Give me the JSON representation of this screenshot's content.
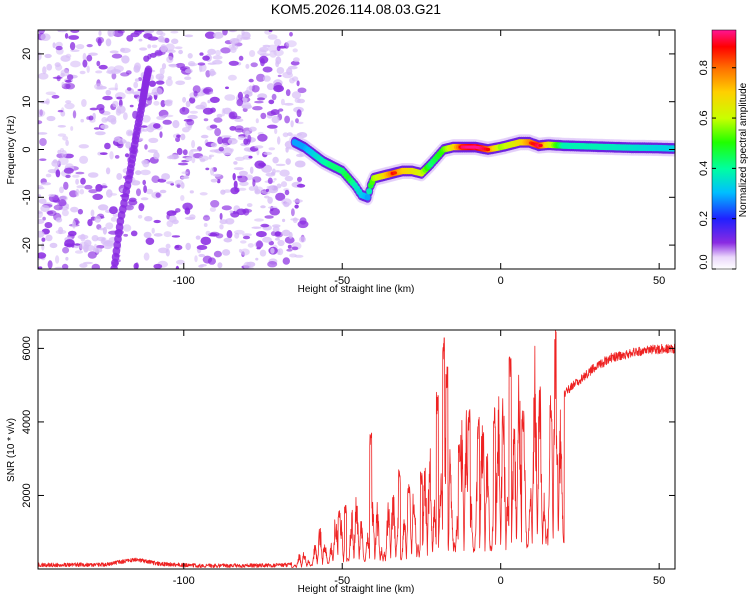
{
  "figure_title": "KOM5.2026.114.08.03.G21",
  "colors": {
    "sweep": "#8a2be2",
    "snr_line": "#ee2222",
    "background": "#ffffff",
    "axes": "#000000"
  },
  "chart_data": [
    {
      "type": "heatmap",
      "title": "KOM5.2026.114.08.03.G21",
      "xlabel": "Height of straight line (km)",
      "ylabel": "Frequency (Hz)",
      "xlim": [
        -146,
        55
      ],
      "ylim": [
        -25,
        25
      ],
      "xticks": [
        -100,
        -50,
        0,
        50
      ],
      "yticks": [
        -20,
        -10,
        0,
        10,
        20
      ],
      "colorbar": {
        "label": "Normalized spectral amplitude",
        "range": [
          0,
          0.95
        ],
        "ticks": [
          "0.0",
          "0.2",
          "0.4",
          "0.6",
          "0.8"
        ],
        "tick_values": [
          0,
          0.2,
          0.4,
          0.6,
          0.8
        ]
      },
      "noise_region_x": [
        -146,
        -66
      ],
      "sweep_track": [
        [
          -122,
          -25
        ],
        [
          -120,
          -15
        ],
        [
          -117,
          -5
        ],
        [
          -115,
          3
        ],
        [
          -113,
          10
        ],
        [
          -112,
          14
        ],
        [
          -111,
          17
        ]
      ],
      "signal_track": [
        [
          -65,
          1.5
        ],
        [
          -62,
          0.5
        ],
        [
          -59,
          -1
        ],
        [
          -56,
          -2.5
        ],
        [
          -53,
          -3.5
        ],
        [
          -50,
          -4.5
        ],
        [
          -48,
          -6
        ],
        [
          -46,
          -7.5
        ],
        [
          -44,
          -9.5
        ],
        [
          -42,
          -10
        ],
        [
          -41,
          -7.5
        ],
        [
          -40,
          -6
        ],
        [
          -37,
          -5.5
        ],
        [
          -34,
          -5
        ],
        [
          -31,
          -4.5
        ],
        [
          -28,
          -4.5
        ],
        [
          -25,
          -5
        ],
        [
          -22,
          -3
        ],
        [
          -20,
          -1.5
        ],
        [
          -18,
          0
        ],
        [
          -15,
          0.5
        ],
        [
          -12,
          0.5
        ],
        [
          -8,
          0.5
        ],
        [
          -4,
          0
        ],
        [
          0,
          0.5
        ],
        [
          3,
          1
        ],
        [
          6,
          1.5
        ],
        [
          9,
          1.5
        ],
        [
          12,
          0.8
        ],
        [
          15,
          1
        ],
        [
          20,
          0.8
        ],
        [
          30,
          0.6
        ],
        [
          40,
          0.4
        ],
        [
          50,
          0.3
        ],
        [
          55,
          0.2
        ]
      ],
      "signal_amplitude": [
        0.3,
        0.3,
        0.35,
        0.4,
        0.45,
        0.45,
        0.5,
        0.4,
        0.35,
        0.3,
        0.5,
        0.6,
        0.7,
        0.85,
        0.75,
        0.7,
        0.65,
        0.45,
        0.5,
        0.55,
        0.7,
        0.9,
        0.95,
        0.85,
        0.6,
        0.65,
        0.7,
        0.8,
        0.9,
        0.7,
        0.4,
        0.4,
        0.38,
        0.35,
        0.35
      ]
    },
    {
      "type": "line",
      "xlabel": "Height of straight line (km)",
      "ylabel": "SNR (10 * v/v)",
      "xlim": [
        -146,
        55
      ],
      "ylim": [
        0,
        6500
      ],
      "xticks": [
        -100,
        -50,
        0,
        50
      ],
      "yticks": [
        2000,
        4000,
        6000
      ],
      "envelope": [
        [
          -146,
          110
        ],
        [
          -125,
          120
        ],
        [
          -115,
          260
        ],
        [
          -108,
          140
        ],
        [
          -95,
          90
        ],
        [
          -80,
          90
        ],
        [
          -67,
          110
        ],
        [
          -62,
          350
        ],
        [
          -55,
          900
        ],
        [
          -50,
          1250
        ],
        [
          -45,
          1400
        ],
        [
          -40,
          1300
        ],
        [
          -35,
          1500
        ],
        [
          -30,
          1700
        ],
        [
          -25,
          2000
        ],
        [
          -22,
          2300
        ],
        [
          -19,
          2700
        ],
        [
          -15,
          2900
        ],
        [
          -10,
          3000
        ],
        [
          -5,
          3100
        ],
        [
          0,
          3300
        ],
        [
          5,
          3650
        ],
        [
          10,
          3900
        ],
        [
          15,
          4300
        ],
        [
          20,
          4750
        ],
        [
          25,
          5150
        ],
        [
          30,
          5500
        ],
        [
          35,
          5750
        ],
        [
          40,
          5850
        ],
        [
          45,
          5930
        ],
        [
          50,
          5980
        ],
        [
          55,
          6000
        ]
      ],
      "spikes": [
        {
          "x": -51,
          "y": 1600
        },
        {
          "x": -49,
          "y": 1750
        },
        {
          "x": -41,
          "y": 3800
        },
        {
          "x": -32,
          "y": 2700
        },
        {
          "x": -29,
          "y": 2400
        },
        {
          "x": -25,
          "y": 2700
        },
        {
          "x": -20,
          "y": 4900
        },
        {
          "x": -18,
          "y": 6350
        },
        {
          "x": -17,
          "y": 5600
        },
        {
          "x": -13,
          "y": 3400
        },
        {
          "x": -10,
          "y": 4400
        },
        {
          "x": -7,
          "y": 4150
        },
        {
          "x": -2,
          "y": 4500
        },
        {
          "x": 3,
          "y": 5800
        },
        {
          "x": 7,
          "y": 4300
        }
      ]
    }
  ]
}
